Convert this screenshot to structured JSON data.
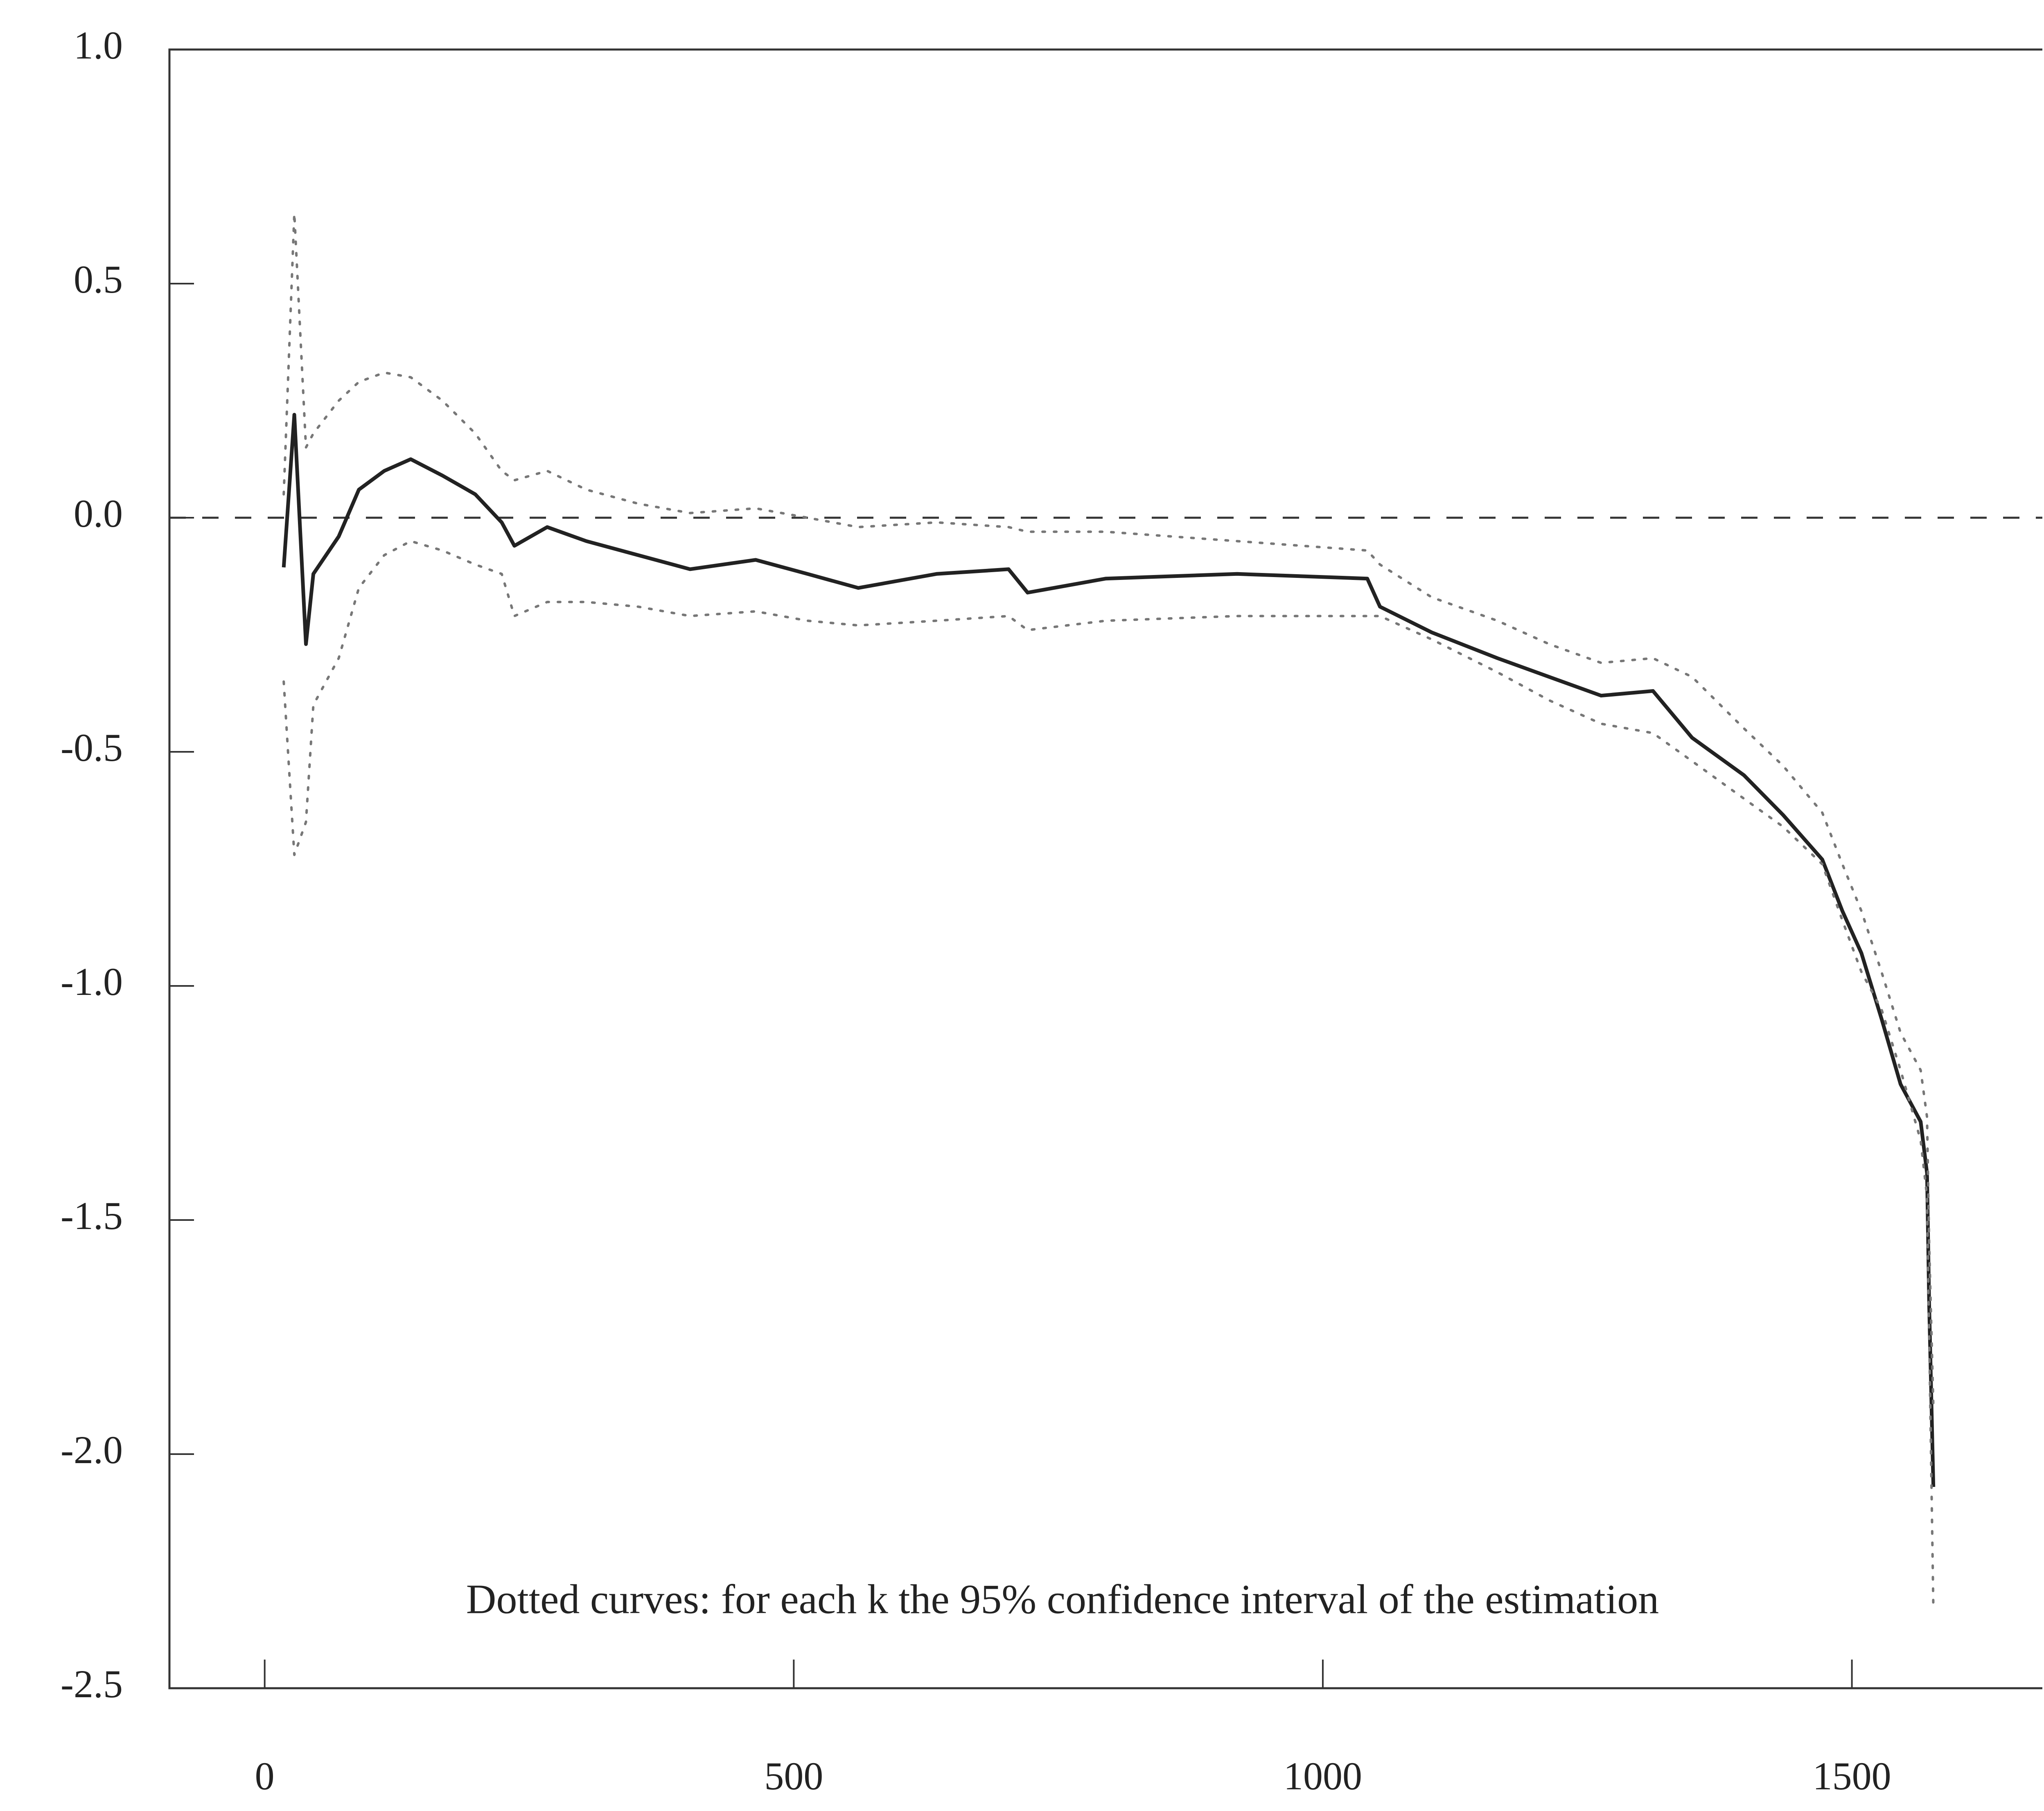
{
  "chart_data": {
    "type": "line",
    "annotation": "Dotted curves: for each k the 95% confidence interval of the estimation",
    "x": [
      18,
      28,
      39,
      46,
      70,
      89,
      113,
      138,
      168,
      199,
      224,
      236,
      267,
      304,
      353,
      402,
      464,
      513,
      561,
      635,
      703,
      721,
      795,
      919,
      1042,
      1054,
      1103,
      1165,
      1214,
      1263,
      1312,
      1349,
      1398,
      1435,
      1472,
      1491,
      1509,
      1528,
      1546,
      1565,
      1571,
      1573,
      1577
    ],
    "series": [
      {
        "color": "#222222",
        "style": "solid",
        "values": [
          -0.106,
          0.22,
          -0.27,
          -0.12,
          -0.04,
          0.06,
          0.1,
          0.125,
          0.09,
          0.05,
          -0.01,
          -0.06,
          -0.02,
          -0.05,
          -0.08,
          -0.11,
          -0.09,
          -0.12,
          -0.15,
          -0.12,
          -0.11,
          -0.16,
          -0.13,
          -0.12,
          -0.13,
          -0.19,
          -0.245,
          -0.3,
          -0.34,
          -0.38,
          -0.37,
          -0.47,
          -0.55,
          -0.635,
          -0.73,
          -0.84,
          -0.93,
          -1.07,
          -1.21,
          -1.29,
          -1.4,
          -1.68,
          -2.07
        ]
      },
      {
        "color": "#777777",
        "style": "dotted",
        "values": [
          0.05,
          0.65,
          0.15,
          0.18,
          0.25,
          0.29,
          0.31,
          0.3,
          0.25,
          0.18,
          0.1,
          0.08,
          0.1,
          0.06,
          0.03,
          0.01,
          0.02,
          0.0,
          -0.02,
          -0.01,
          -0.02,
          -0.03,
          -0.03,
          -0.05,
          -0.07,
          -0.1,
          -0.17,
          -0.22,
          -0.27,
          -0.31,
          -0.3,
          -0.34,
          -0.45,
          -0.53,
          -0.63,
          -0.74,
          -0.84,
          -0.97,
          -1.1,
          -1.18,
          -1.28,
          -1.55,
          -1.9
        ]
      },
      {
        "color": "#777777",
        "style": "dotted",
        "values": [
          -0.35,
          -0.72,
          -0.65,
          -0.4,
          -0.3,
          -0.15,
          -0.08,
          -0.05,
          -0.07,
          -0.1,
          -0.12,
          -0.21,
          -0.18,
          -0.18,
          -0.19,
          -0.21,
          -0.2,
          -0.22,
          -0.23,
          -0.22,
          -0.21,
          -0.24,
          -0.22,
          -0.21,
          -0.21,
          -0.21,
          -0.26,
          -0.33,
          -0.39,
          -0.44,
          -0.46,
          -0.52,
          -0.6,
          -0.66,
          -0.74,
          -0.86,
          -0.97,
          -1.05,
          -1.18,
          -1.33,
          -1.45,
          -1.74,
          -2.33
        ]
      }
    ],
    "reference_line": 0,
    "xlim": [
      -90,
      1680
    ],
    "ylim": [
      -2.5,
      1.0
    ],
    "xticks": [
      0,
      500,
      1000,
      1500
    ],
    "yticks": [
      {
        "value": -2.5,
        "label": "-2.5"
      },
      {
        "value": -2.0,
        "label": "-2.0"
      },
      -1.5,
      {
        "value": -1.0,
        "label": "-1.0"
      },
      -0.5,
      {
        "value": 0,
        "label": "0.0"
      },
      0.5,
      {
        "value": 1.0,
        "label": "1.0"
      }
    ]
  }
}
